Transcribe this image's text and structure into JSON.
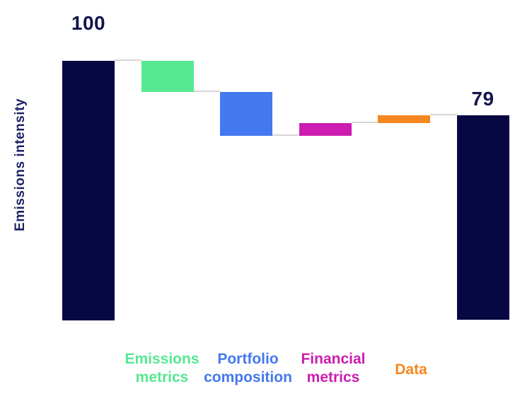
{
  "page": {
    "background": "#FFFFFF"
  },
  "chart_data": {
    "type": "waterfall",
    "title": "",
    "xlabel": "",
    "ylabel": "Emissions intensity",
    "ylim": [
      0,
      100
    ],
    "grid": false,
    "legend": "none",
    "axis_lines": "none",
    "categories": [
      "",
      "Emissions metrics",
      "Portfolio composition",
      "Financial metrics",
      "Data",
      ""
    ],
    "bars": [
      {
        "name": "start-total",
        "kind": "total",
        "from": 0,
        "to": 100,
        "value": 100,
        "value_label": "100",
        "label_lines": [],
        "color_key": "navy"
      },
      {
        "name": "emissions-metrics",
        "kind": "decrease",
        "from": 100,
        "to": 88,
        "value": -12,
        "value_label": "",
        "label_lines": [
          "Emissions",
          "metrics"
        ],
        "color_key": "green"
      },
      {
        "name": "portfolio-composition",
        "kind": "decrease",
        "from": 88,
        "to": 71,
        "value": -17,
        "value_label": "",
        "label_lines": [
          "Portfolio",
          "composition"
        ],
        "color_key": "blue"
      },
      {
        "name": "financial-metrics",
        "kind": "increase",
        "from": 71,
        "to": 76,
        "value": 5,
        "value_label": "",
        "label_lines": [
          "Financial",
          "metrics"
        ],
        "color_key": "magenta"
      },
      {
        "name": "data",
        "kind": "increase",
        "from": 76,
        "to": 79,
        "value": 3,
        "value_label": "",
        "label_lines": [
          "Data"
        ],
        "color_key": "orange"
      },
      {
        "name": "end-total",
        "kind": "total",
        "from": 0,
        "to": 79,
        "value": 79,
        "value_label": "79",
        "label_lines": [],
        "color_key": "navy"
      }
    ],
    "connector_levels": [
      100,
      88,
      71,
      76,
      79
    ],
    "colors": {
      "navy": "#070843",
      "green": "#57E793",
      "blue": "#4478EE",
      "magenta": "#CC1CB1",
      "orange": "#F6861F",
      "connector": "#D6D6D6",
      "value_text": "#14144E",
      "ylabel_text": "#202066"
    }
  }
}
